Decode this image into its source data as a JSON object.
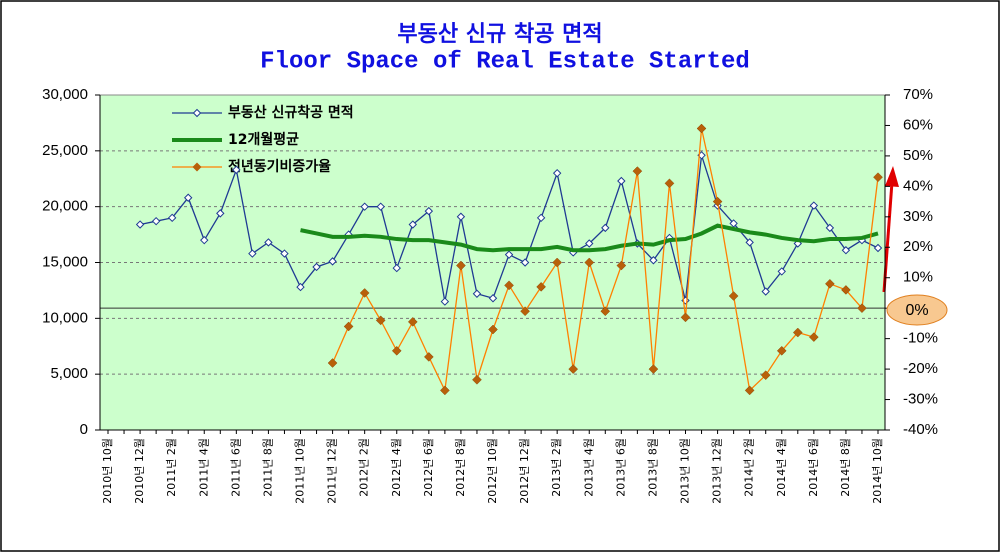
{
  "chart_data": {
    "type": "line",
    "title": "부동산 신규 착공 면적",
    "subtitle": "Floor Space of Real Estate Started",
    "categories": [
      "2010년 10월",
      null,
      "2010년 12월",
      null,
      "2011년 2월",
      null,
      "2011년 4월",
      null,
      "2011년 6월",
      null,
      "2011년 8월",
      null,
      "2011년 10월",
      null,
      "2011년 12월",
      null,
      "2012년 2월",
      null,
      "2012년 4월",
      null,
      "2012년 6월",
      null,
      "2012년 8월",
      null,
      "2012년 10월",
      null,
      "2012년 12월",
      null,
      "2013년 2월",
      null,
      "2013년 4월",
      null,
      "2013년 6월",
      null,
      "2013년 8월",
      null,
      "2013년 10월",
      null,
      "2013년 12월",
      null,
      "2014년 2월",
      null,
      "2014년 4월",
      null,
      "2014년 6월",
      null,
      "2014년 8월",
      null,
      "2014년 10월"
    ],
    "series": [
      {
        "name": "부동산 신규착공 면적",
        "color": "#1f3a93",
        "marker": "hollow-diamond",
        "values": [
          null,
          null,
          18400,
          18700,
          19000,
          20800,
          17000,
          19400,
          23300,
          15800,
          16800,
          15800,
          12800,
          14600,
          15100,
          17500,
          20000,
          20000,
          14500,
          18400,
          19600,
          11500,
          19100,
          12200,
          11800,
          15700,
          15000,
          19000,
          23000,
          15900,
          16700,
          18100,
          22300,
          16700,
          15200,
          17200,
          11600,
          24600,
          20100,
          18500,
          16800,
          12400,
          14200,
          16700,
          20100,
          18100,
          16100,
          17000,
          16300
        ]
      },
      {
        "name": "12개월평균",
        "color": "#1a8a1a",
        "marker": "none",
        "values": [
          null,
          null,
          null,
          null,
          null,
          null,
          null,
          null,
          null,
          null,
          null,
          null,
          17900,
          17600,
          17300,
          17300,
          17400,
          17300,
          17100,
          17000,
          17000,
          16800,
          16600,
          16200,
          16100,
          16200,
          16200,
          16200,
          16400,
          16100,
          16100,
          16200,
          16500,
          16700,
          16600,
          17000,
          17100,
          17600,
          18300,
          18000,
          17700,
          17500,
          17200,
          17000,
          16900,
          17100,
          17100,
          17200,
          17600
        ]
      },
      {
        "name": "전년동기비증가율",
        "color": "#ff8000",
        "marker": "filled-diamond",
        "axis": "y2",
        "values": [
          null,
          null,
          null,
          null,
          null,
          null,
          null,
          null,
          null,
          null,
          null,
          null,
          null,
          null,
          -18,
          -6,
          5,
          -4,
          -14,
          -4.5,
          -16,
          -27,
          14,
          -23.5,
          -7,
          7.5,
          -1,
          7,
          15,
          -20,
          15,
          -1,
          14,
          45,
          -20,
          41,
          -3,
          59,
          35,
          4,
          -27,
          -22,
          -14,
          -8,
          -9.5,
          8,
          6,
          0,
          43
        ]
      }
    ],
    "ylim": [
      0,
      30000
    ],
    "yticks": [
      0,
      {
        "value": 5000,
        "label": "5,000"
      },
      {
        "value": 10000,
        "label": "10,000"
      },
      {
        "value": 15000,
        "label": "15,000"
      },
      {
        "value": 20000,
        "label": "20,000"
      },
      {
        "value": 25000,
        "label": "25,000"
      },
      {
        "value": 30000,
        "label": "30,000"
      }
    ],
    "y2lim": [
      -40,
      70
    ],
    "y2ticks": [
      {
        "value": -40,
        "label": "-40%"
      },
      {
        "value": -30,
        "label": "-30%"
      },
      {
        "value": -20,
        "label": "-20%"
      },
      {
        "value": -10,
        "label": "-10%"
      },
      {
        "value": 0,
        "label": "0%"
      },
      {
        "value": 10,
        "label": "10%"
      },
      {
        "value": 20,
        "label": "20%"
      },
      {
        "value": 30,
        "label": "30%"
      },
      {
        "value": 40,
        "label": "40%"
      },
      {
        "value": 50,
        "label": "50%"
      },
      {
        "value": 60,
        "label": "60%"
      },
      {
        "value": 70,
        "label": "70%"
      }
    ],
    "grid": true,
    "legend": "upper left",
    "annotation": "0%"
  }
}
